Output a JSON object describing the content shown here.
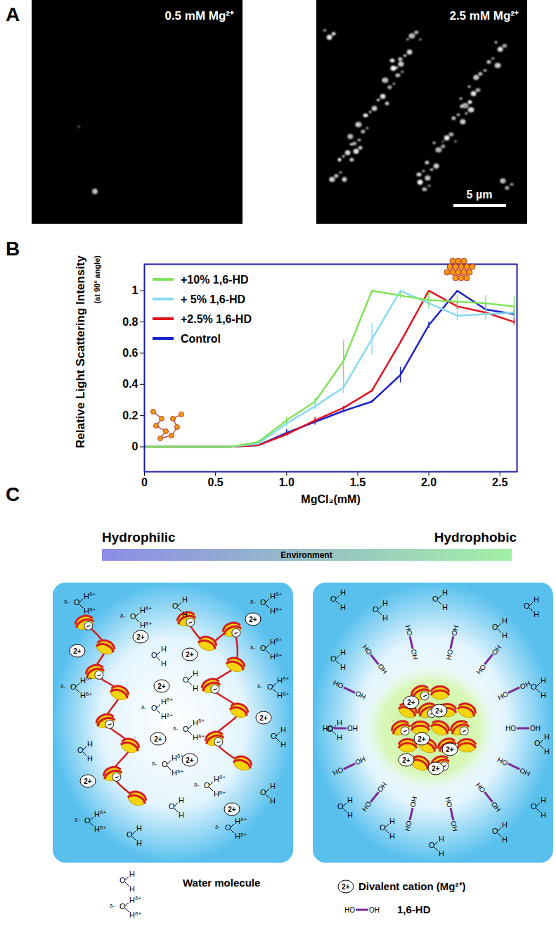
{
  "panel_labels": [
    "A",
    "B",
    "C"
  ],
  "panel_a": {
    "images": [
      {
        "label": "0.5 mM Mg²⁺"
      },
      {
        "label": "2.5 mM Mg²⁺"
      }
    ],
    "scale_bar": "5 µm"
  },
  "chart_data": {
    "type": "line",
    "y_label": "Relative Light Scattering Intensity",
    "y_label_note": "(at 90° angle)",
    "x_label": "MgCl₂(mM)",
    "x": [
      0,
      0.2,
      0.4,
      0.6,
      0.8,
      1.0,
      1.2,
      1.4,
      1.6,
      1.8,
      2.0,
      2.2,
      2.4,
      2.6
    ],
    "xlim": [
      0,
      2.62
    ],
    "xticks": [
      0,
      0.5,
      {
        "value": 1,
        "label": "1.0"
      },
      1.5,
      {
        "value": 2,
        "label": "2.0"
      },
      2.5
    ],
    "ylim": [
      -0.16,
      1.17
    ],
    "yticks": [
      0,
      0.2,
      0.4,
      0.6,
      0.8,
      1
    ],
    "grid": false,
    "legend": "top-left",
    "series": [
      {
        "name": "+10% 1,6-HD",
        "color": "#80e35a",
        "values": [
          0,
          0,
          0,
          0,
          0.03,
          0.17,
          0.29,
          0.55,
          1.0,
          0.97,
          0.94,
          0.93,
          0.92,
          0.9
        ],
        "errors": [
          null,
          null,
          null,
          null,
          0.01,
          0.02,
          0.02,
          0.13,
          null,
          0.02,
          0.05,
          0.04,
          0.05,
          0.06
        ]
      },
      {
        "name": "+ 5% 1,6-HD",
        "color": "#86d9f2",
        "values": [
          0,
          0,
          0,
          0,
          0.02,
          0.15,
          0.26,
          0.38,
          0.69,
          1.0,
          0.92,
          0.84,
          0.85,
          0.86
        ],
        "errors": [
          null,
          null,
          null,
          null,
          0.01,
          0.02,
          0.02,
          0.04,
          0.1,
          null,
          0.04,
          0.03,
          0.04,
          0.04
        ]
      },
      {
        "name": "+2.5% 1,6-HD",
        "color": "#e0141e",
        "values": [
          0,
          0,
          0,
          0,
          0.01,
          0.08,
          0.17,
          0.25,
          0.36,
          0.67,
          1.0,
          0.9,
          0.86,
          0.8
        ],
        "errors": [
          null,
          null,
          null,
          null,
          null,
          0.01,
          0.02,
          0.01,
          0.01,
          0.01,
          null,
          0.02,
          0.02,
          0.02
        ]
      },
      {
        "name": "Control",
        "color": "#1a22c8",
        "values": [
          0,
          0,
          0,
          0,
          0.01,
          0.09,
          0.16,
          0.23,
          0.29,
          0.46,
          0.78,
          1.0,
          0.88,
          0.85
        ],
        "errors": [
          null,
          null,
          null,
          null,
          null,
          0.02,
          0.02,
          0.01,
          0.01,
          0.05,
          0.02,
          null,
          0.03,
          0.03
        ]
      }
    ]
  },
  "panel_c": {
    "scale": {
      "left": "Hydrophilic",
      "right": "Hydrophobic",
      "title": "Environment"
    },
    "symbols": {
      "oxygen": "O",
      "hydrogen": "H",
      "partial_negative": "δ-",
      "partial_positive": "δ+",
      "cation": "2+",
      "hd_ends": [
        "HO",
        "OH"
      ],
      "charge": "−"
    },
    "legend": {
      "water": "Water molecule",
      "cation": "Divalent cation (Mg²⁺)",
      "hd": "1,6-HD"
    }
  }
}
